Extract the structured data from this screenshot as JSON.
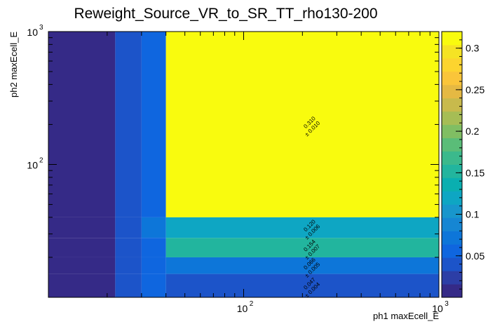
{
  "chart_data": {
    "type": "heatmap",
    "title": "Reweight_Source_VR_to_SR_TT_rho130-200",
    "xlabel": "ph1 maxEcell_E",
    "ylabel": "ph2 maxEcell_E",
    "x_scale": "log",
    "y_scale": "log",
    "xlim": [
      10,
      1000
    ],
    "ylim": [
      10,
      1000
    ],
    "x_ticks": [
      {
        "value": 100,
        "label": "10",
        "exp": "2"
      },
      {
        "value": 1000,
        "label": "10",
        "exp": "3"
      }
    ],
    "y_ticks": [
      {
        "value": 100,
        "label": "10",
        "exp": "2"
      },
      {
        "value": 1000,
        "label": "10",
        "exp": "3"
      }
    ],
    "x_edges": [
      10,
      22,
      30,
      40,
      1000
    ],
    "y_edges": [
      10,
      15,
      20,
      28,
      40,
      1000
    ],
    "cells": [
      {
        "x": 0,
        "y": 4,
        "value": 0.002
      },
      {
        "x": 1,
        "y": 4,
        "value": 0.04
      },
      {
        "x": 2,
        "y": 4,
        "value": 0.056
      },
      {
        "x": 3,
        "y": 4,
        "value": 0.31,
        "label": "0.310",
        "error": "± 0.010"
      },
      {
        "x": 0,
        "y": 3,
        "value": 0.001
      },
      {
        "x": 1,
        "y": 3,
        "value": 0.04
      },
      {
        "x": 2,
        "y": 3,
        "value": 0.07
      },
      {
        "x": 3,
        "y": 3,
        "value": 0.12,
        "label": "0.120",
        "error": "± 0.006"
      },
      {
        "x": 0,
        "y": 2,
        "value": 0.001
      },
      {
        "x": 1,
        "y": 2,
        "value": 0.04
      },
      {
        "x": 2,
        "y": 2,
        "value": 0.06
      },
      {
        "x": 3,
        "y": 2,
        "value": 0.154,
        "label": "0.154",
        "error": "± 0.007"
      },
      {
        "x": 0,
        "y": 1,
        "value": 0.001
      },
      {
        "x": 1,
        "y": 1,
        "value": 0.04
      },
      {
        "x": 2,
        "y": 1,
        "value": 0.06
      },
      {
        "x": 3,
        "y": 1,
        "value": 0.066,
        "label": "0.066",
        "error": "± 0.005"
      },
      {
        "x": 0,
        "y": 0,
        "value": 0.001
      },
      {
        "x": 1,
        "y": 0,
        "value": 0.04
      },
      {
        "x": 2,
        "y": 0,
        "value": 0.06
      },
      {
        "x": 3,
        "y": 0,
        "value": 0.047,
        "label": "0.047",
        "error": "± 0.004"
      }
    ],
    "colorbar": {
      "min": 0.0,
      "max": 0.32,
      "ticks": [
        {
          "value": 0.05,
          "label": "0.05"
        },
        {
          "value": 0.1,
          "label": "0.1"
        },
        {
          "value": 0.15,
          "label": "0.15"
        },
        {
          "value": 0.2,
          "label": "0.2"
        },
        {
          "value": 0.25,
          "label": "0.25"
        },
        {
          "value": 0.3,
          "label": "0.3"
        }
      ],
      "colors": [
        "#352a87",
        "#2c3ea6",
        "#1c54c9",
        "#0f66df",
        "#0d76d9",
        "#1686d3",
        "#1896cc",
        "#0ea6c3",
        "#0aafb0",
        "#22b59e",
        "#3bb98c",
        "#5abd78",
        "#80be63",
        "#a6bd55",
        "#c8ba4c",
        "#e5b943",
        "#fac53a",
        "#fcd42f",
        "#f5e324",
        "#f9fb0e"
      ]
    },
    "grid": false
  }
}
